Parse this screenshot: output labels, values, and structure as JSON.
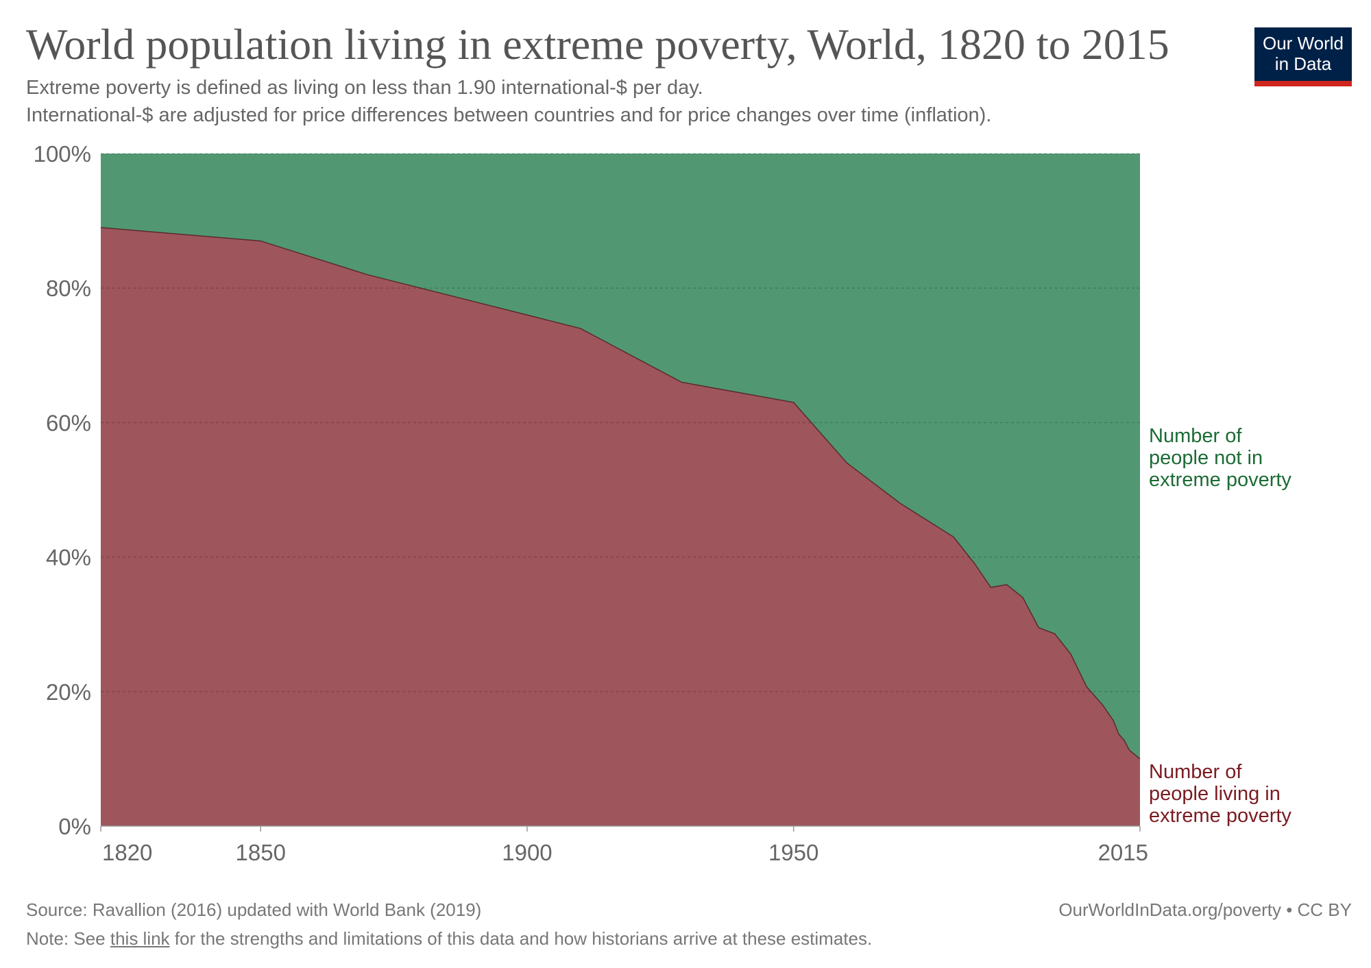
{
  "header": {
    "title": "World population living in extreme poverty, World, 1820 to 2015",
    "subtitle_line1": "Extreme poverty is defined as living on less than 1.90 international-$ per day.",
    "subtitle_line2": "International-$ are adjusted for price differences between countries and for price changes over time (inflation).",
    "logo_line1": "Our World",
    "logo_line2": "in Data"
  },
  "footer": {
    "source": "Source: Ravallion (2016) updated with World Bank (2019)",
    "url": "OurWorldInData.org/poverty • CC BY",
    "note_prefix": "Note: See ",
    "note_link": "this link",
    "note_suffix": " for the strengths and limitations of this data and how historians arrive at these estimates."
  },
  "colors": {
    "poverty": "#9e555b",
    "not_poverty": "#519872",
    "poverty_label": "#7a1b22",
    "not_poverty_label": "#1c6b36",
    "axis_text": "#666666",
    "grid": "#bbbbbb",
    "logo_bg": "#002147",
    "logo_accent": "#ce261e"
  },
  "chart_data": {
    "type": "area",
    "stacked": true,
    "x_ticks": [
      1820,
      1850,
      1900,
      1950,
      2015
    ],
    "x_tick_labels": [
      "1820",
      "1850",
      "1900",
      "1950",
      "2015"
    ],
    "xlim": [
      1820,
      2015
    ],
    "y_ticks": [
      0,
      20,
      40,
      60,
      80,
      100
    ],
    "y_tick_labels": [
      "0%",
      "20%",
      "40%",
      "60%",
      "80%",
      "100%"
    ],
    "ylim": [
      0,
      100
    ],
    "grid": "horizontal dashed",
    "legend_placement": "right-inline",
    "series": [
      {
        "name": "Number of people living in extreme poverty",
        "label_lines": [
          "Number of",
          "people living in",
          "extreme poverty"
        ],
        "x": [
          1820,
          1850,
          1870,
          1890,
          1910,
          1929,
          1950,
          1960,
          1970,
          1980,
          1984,
          1987,
          1990,
          1993,
          1996,
          1999,
          2002,
          2005,
          2008,
          2010,
          2011,
          2012,
          2013,
          2015
        ],
        "y": [
          89,
          87,
          82,
          78,
          74,
          66,
          63,
          54,
          48,
          43,
          39,
          35.5,
          35.9,
          34,
          29.5,
          28.6,
          25.6,
          20.7,
          18,
          15.7,
          13.7,
          12.8,
          11.3,
          10
        ]
      },
      {
        "name": "Number of people not in extreme poverty",
        "label_lines": [
          "Number of",
          "people not in",
          "extreme poverty"
        ],
        "x": [
          1820,
          2015
        ],
        "y_stacked_to": 100
      }
    ]
  }
}
